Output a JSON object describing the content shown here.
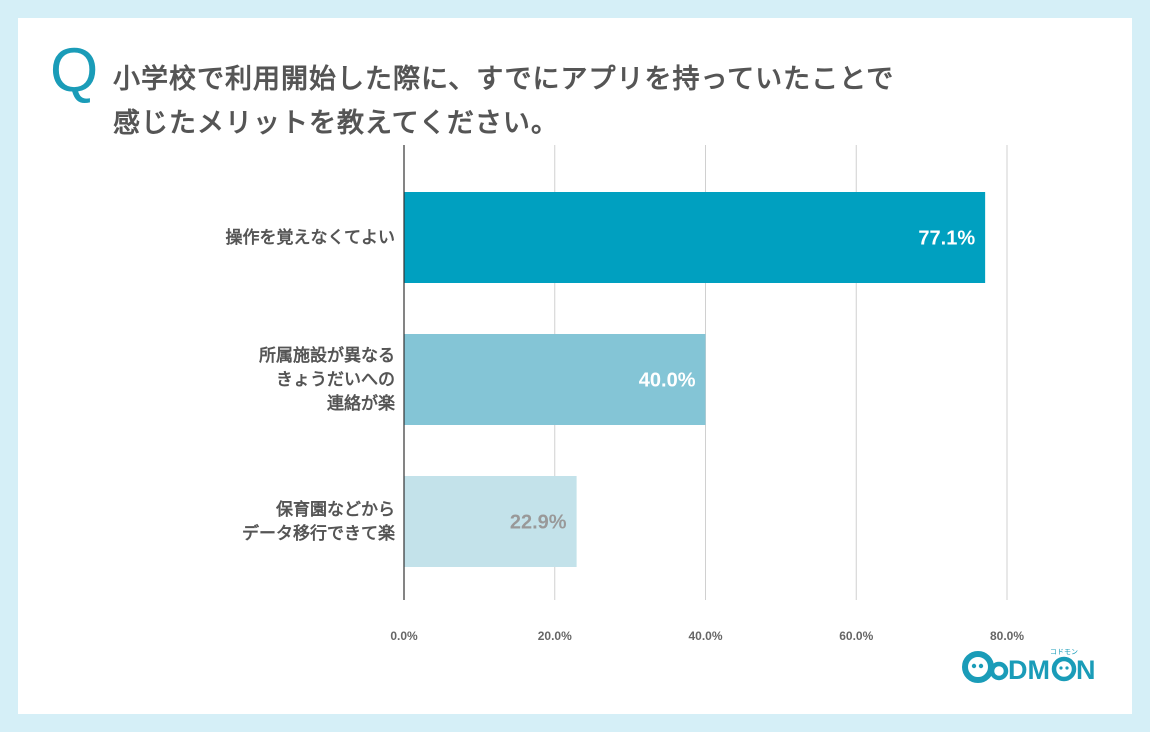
{
  "question_mark": "Q",
  "title_lines": [
    "小学校で利用開始した際に、すでにアプリを持っていたことで",
    "感じたメリットを教えてください。"
  ],
  "chart_data": {
    "type": "bar",
    "orientation": "horizontal",
    "categories": [
      [
        "操作を覚えなくてよい"
      ],
      [
        "所属施設が異なる",
        "きょうだいへの",
        "連絡が楽"
      ],
      [
        "保育園などから",
        "データ移行できて楽"
      ]
    ],
    "values": [
      77.1,
      40.0,
      22.9
    ],
    "data_labels": [
      "77.1%",
      "40.0%",
      "22.9%"
    ],
    "bar_colors": [
      "#00a0c0",
      "#84c5d6",
      "#c3e2ea"
    ],
    "label_colors": [
      "#ffffff",
      "#ffffff",
      "#999999"
    ],
    "xlim": [
      0,
      80
    ],
    "xticks": [
      "0.0%",
      "20.0%",
      "40.0%",
      "60.0%",
      "80.0%"
    ],
    "xtick_values": [
      0,
      20,
      40,
      60,
      80
    ],
    "grid": true
  },
  "logo": {
    "text": "CODMON",
    "kana": "コドモン",
    "color": "#1a9cb8"
  }
}
